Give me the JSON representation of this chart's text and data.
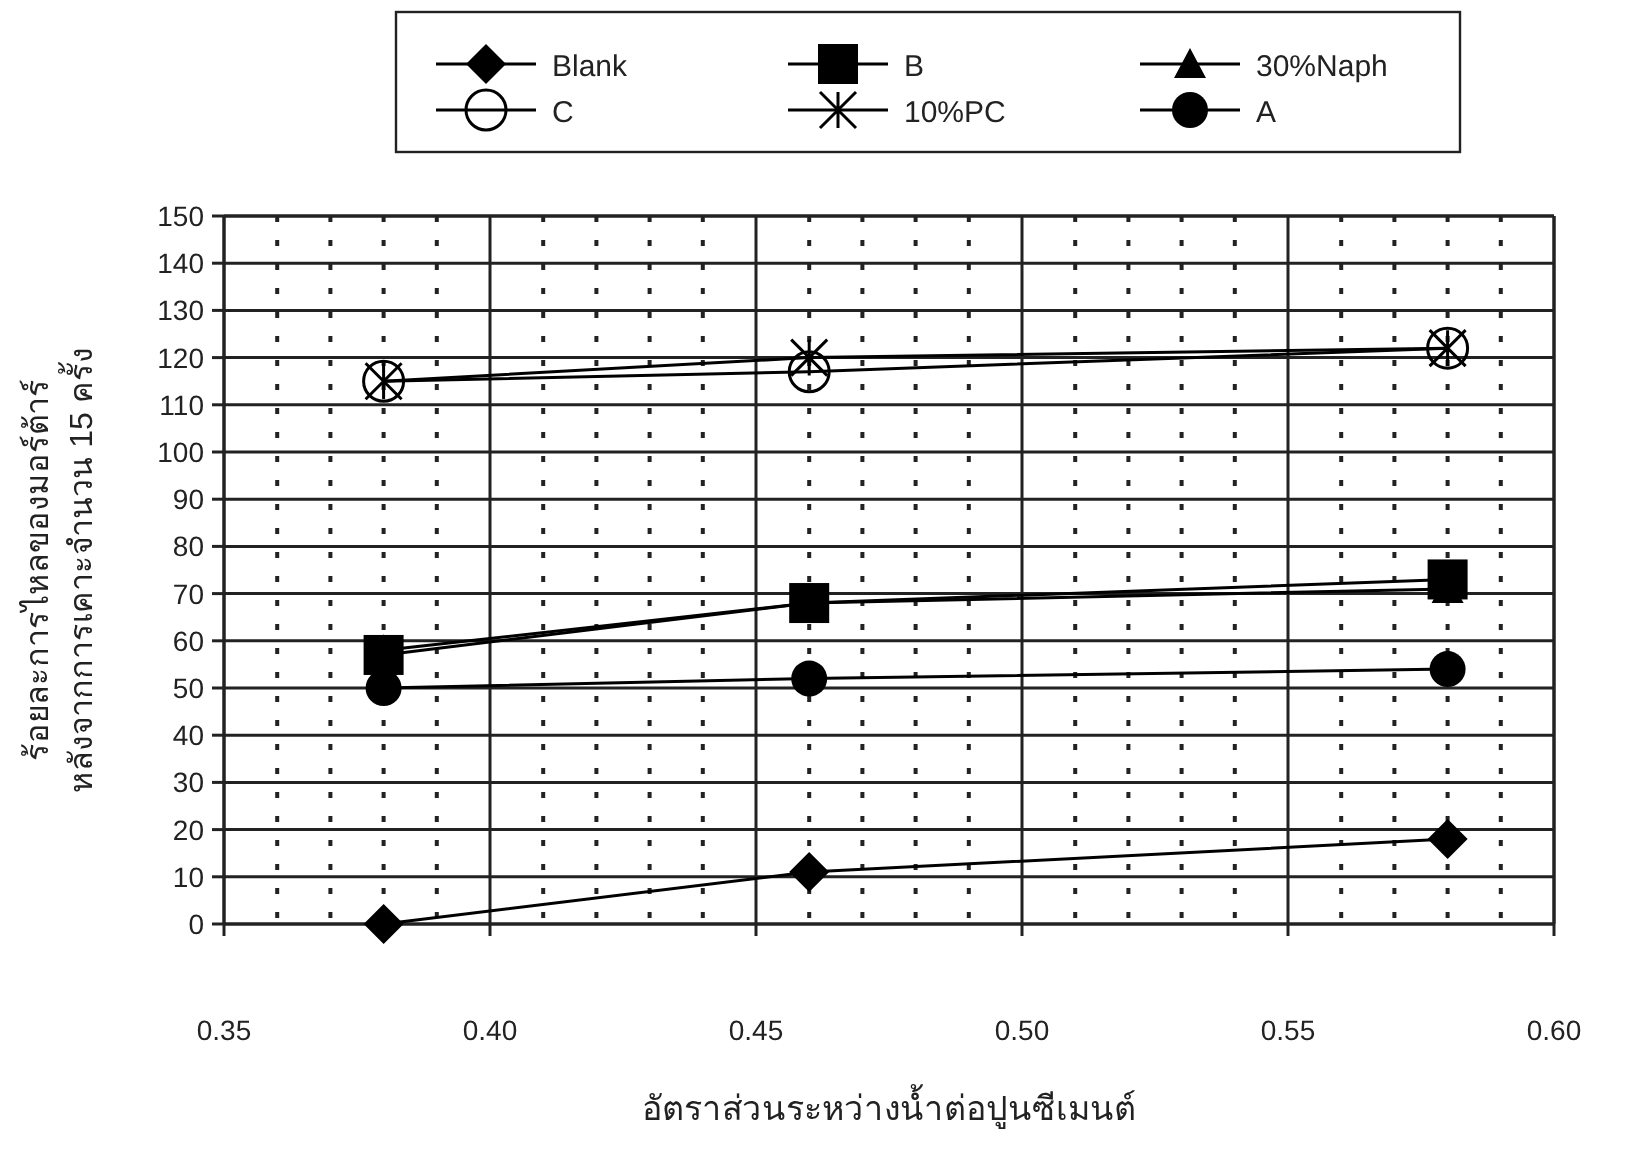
{
  "chart_data": {
    "type": "line",
    "xlabel": "อัตราส่วนระหว่างน้ำต่อปูนซีเมนต์",
    "ylabel": "ร้อยละการไหลของมอร์ต้าร์\nหลังจากการเคาะจำนวน 15 ครั้ง",
    "x": [
      0.38,
      0.46,
      0.58
    ],
    "series": [
      {
        "name": "Blank",
        "color": "#000000",
        "marker": "diamond",
        "values": [
          0,
          11,
          18
        ]
      },
      {
        "name": "B",
        "color": "#000000",
        "marker": "square",
        "values": [
          57,
          68,
          73
        ]
      },
      {
        "name": "30%Naph",
        "color": "#000000",
        "marker": "triangle",
        "values": [
          58,
          68,
          71
        ]
      },
      {
        "name": "C",
        "color": "#000000",
        "marker": "circle_open",
        "values": [
          115,
          117,
          122
        ]
      },
      {
        "name": "10%PC",
        "color": "#000000",
        "marker": "cross",
        "values": [
          115,
          120,
          122
        ]
      },
      {
        "name": "A",
        "color": "#000000",
        "marker": "circle",
        "values": [
          50,
          52,
          54
        ]
      }
    ],
    "xlim": [
      0.35,
      0.6
    ],
    "xticks": [
      {
        "value": 0.35,
        "label": "0.35"
      },
      {
        "value": 0.36,
        "label": null
      },
      {
        "value": 0.37,
        "label": null
      },
      {
        "value": 0.38,
        "label": null
      },
      {
        "value": 0.39,
        "label": null
      },
      {
        "value": 0.4,
        "label": "0.40"
      },
      {
        "value": 0.41,
        "label": null
      },
      {
        "value": 0.42,
        "label": null
      },
      {
        "value": 0.43,
        "label": null
      },
      {
        "value": 0.44,
        "label": null
      },
      {
        "value": 0.45,
        "label": "0.45"
      },
      {
        "value": 0.46,
        "label": null
      },
      {
        "value": 0.47,
        "label": null
      },
      {
        "value": 0.48,
        "label": null
      },
      {
        "value": 0.49,
        "label": null
      },
      {
        "value": 0.5,
        "label": "0.50"
      },
      {
        "value": 0.51,
        "label": null
      },
      {
        "value": 0.52,
        "label": null
      },
      {
        "value": 0.53,
        "label": null
      },
      {
        "value": 0.54,
        "label": null
      },
      {
        "value": 0.55,
        "label": "0.55"
      },
      {
        "value": 0.56,
        "label": null
      },
      {
        "value": 0.57,
        "label": null
      },
      {
        "value": 0.58,
        "label": null
      },
      {
        "value": 0.59,
        "label": null
      },
      {
        "value": 0.6,
        "label": "0.60"
      }
    ],
    "ylim": [
      0,
      150
    ],
    "yticks": [
      0,
      10,
      20,
      30,
      40,
      50,
      60,
      70,
      80,
      90,
      100,
      110,
      120,
      130,
      140,
      150
    ],
    "grid": true,
    "legend": "top",
    "line_style": "solid"
  }
}
